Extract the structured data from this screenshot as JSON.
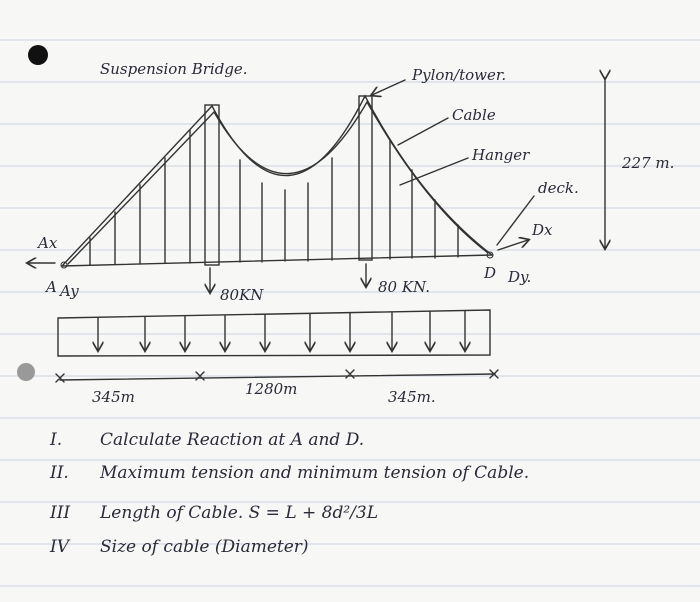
{
  "title": "Suspension Bridge.",
  "labels": {
    "pylon": "Pylon/tower.",
    "cable": "Cable",
    "hanger": "Hanger",
    "deck": "deck.",
    "dx": "Dx",
    "height": "227 m.",
    "ax": "Ax",
    "a": "A",
    "ay": "Ay",
    "load_left": "80KN",
    "load_right": "80 KN.",
    "d": "D",
    "dy": "Dy."
  },
  "spans": [
    "345m",
    "1280m",
    "345m."
  ],
  "questions": [
    {
      "number": "I.",
      "text": "Calculate Reaction at A and D."
    },
    {
      "number": "II.",
      "text": "Maximum tension and minimum tension of Cable."
    },
    {
      "number": "III",
      "text": "Length of Cable. S = L + 8d²/3L"
    },
    {
      "number": "IV",
      "text": "Size of cable (Diameter)"
    }
  ]
}
